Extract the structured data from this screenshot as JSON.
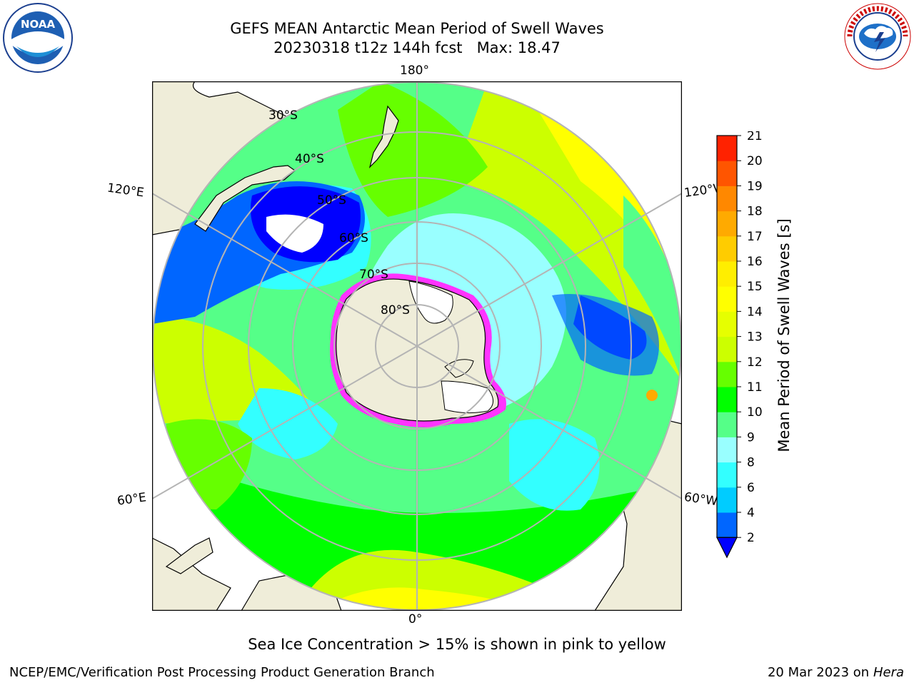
{
  "title_line1": "GEFS MEAN Antarctic Mean Period of Swell Waves",
  "title_line2": "20230318 t12z 144h fcst   Max: 18.47",
  "map": {
    "longitude_labels": [
      "180°",
      "120°E",
      "120°W",
      "60°E",
      "60°W",
      "0°"
    ],
    "latitude_labels": [
      "30°S",
      "40°S",
      "50°S",
      "60°S",
      "70°S",
      "80°S"
    ],
    "colors": {
      "land": "#efedd9",
      "ice_sheet": "#ffffff",
      "grid": "#b4b4b4",
      "sea_ice_edge": "#ff33ff",
      "sea_ice_inner": "#ffcc66"
    }
  },
  "colorbar": {
    "label": "Mean Period of Swell Waves [s]",
    "ticks": [
      "2",
      "4",
      "6",
      "8",
      "9",
      "10",
      "11",
      "12",
      "13",
      "14",
      "15",
      "16",
      "17",
      "18",
      "19",
      "20",
      "21"
    ],
    "colors": [
      "#0066ff",
      "#00ccff",
      "#33ffff",
      "#99ffff",
      "#55ff88",
      "#00ff00",
      "#66ff00",
      "#ccff00",
      "#e6ff00",
      "#ffff00",
      "#ffee00",
      "#ffcc00",
      "#ffaa00",
      "#ff8800",
      "#ff5500",
      "#ff2200"
    ],
    "under_color": "#0000ff"
  },
  "ice_note": "Sea Ice Concentration > 15% is shown in pink to yellow",
  "footer_left": "NCEP/EMC/Verification Post Processing Product Generation Branch",
  "footer_right_date": "20 Mar 2023 on",
  "footer_right_host": "Hera",
  "logos": {
    "noaa_text": "NOAA",
    "nws_text": "NATIONAL WEATHER SERVICE"
  }
}
